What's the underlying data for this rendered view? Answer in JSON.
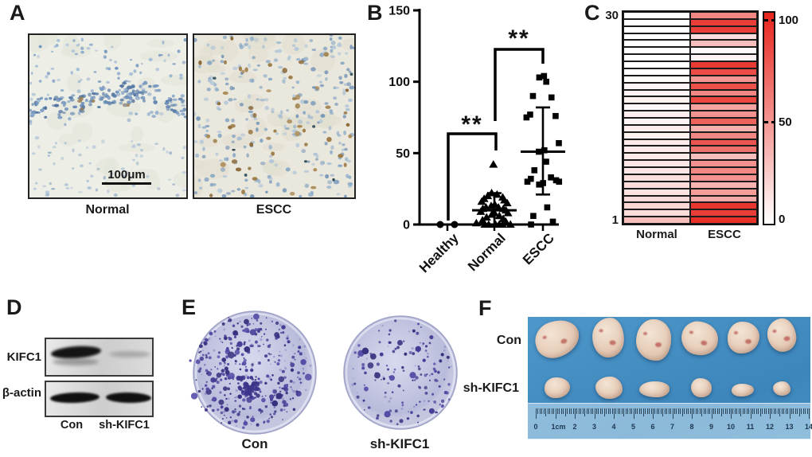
{
  "panels": {
    "A": {
      "letter": "A",
      "image_labels": [
        "Normal",
        "ESCC"
      ],
      "scale_bar_label": "100μm"
    },
    "B": {
      "letter": "B"
    },
    "C": {
      "letter": "C",
      "top_row_label": "30",
      "bottom_row_label": "1",
      "column_labels": [
        "Normal",
        "ESCC"
      ],
      "colorbar_labels": [
        "100",
        "50",
        "0"
      ]
    },
    "D": {
      "letter": "D",
      "band_labels": [
        "KIFC1",
        "β-actin"
      ],
      "lane_labels": [
        "Con",
        "sh-KIFC1"
      ]
    },
    "E": {
      "letter": "E",
      "dish_labels": [
        "Con",
        "sh-KIFC1"
      ]
    },
    "F": {
      "letter": "F",
      "row_labels": [
        "Con",
        "sh-KIFC1"
      ],
      "ruler_labels": [
        "0",
        "1cm",
        "2",
        "3",
        "4",
        "5",
        "6",
        "7",
        "8",
        "9",
        "10",
        "11",
        "12",
        "13",
        "14"
      ]
    }
  },
  "chart_data": [
    {
      "type": "scatter",
      "title": "",
      "categories": [
        "Healthy",
        "Normal",
        "ESCC"
      ],
      "ylim": [
        0,
        150
      ],
      "yticks": [
        0,
        50,
        100,
        150
      ],
      "series": [
        {
          "name": "Healthy",
          "marker": "circle",
          "values": [
            0,
            0
          ]
        },
        {
          "name": "Normal",
          "marker": "triangle",
          "values": [
            42,
            22,
            21,
            20,
            19,
            18,
            17,
            16,
            15,
            14,
            13,
            12,
            12,
            11,
            11,
            10,
            9,
            8,
            8,
            7,
            6,
            5,
            4,
            3,
            2,
            1,
            0,
            0,
            0,
            0,
            0,
            0
          ],
          "mean": 10,
          "sd_low": 0,
          "sd_high": 22
        },
        {
          "name": "ESCC",
          "marker": "square",
          "values": [
            104,
            103,
            100,
            90,
            89,
            77,
            76,
            75,
            57,
            52,
            51,
            44,
            38,
            33,
            32,
            31,
            30,
            30,
            29,
            28,
            12,
            6,
            2,
            0
          ],
          "mean": 51,
          "sd_low": 21,
          "sd_high": 82
        }
      ],
      "significance": [
        {
          "between": [
            "Healthy",
            "Normal"
          ],
          "label": "**"
        },
        {
          "between": [
            "Normal",
            "ESCC"
          ],
          "label": "**"
        }
      ],
      "legend": "none",
      "grid": false
    },
    {
      "type": "heatmap",
      "columns": [
        "Normal",
        "ESCC"
      ],
      "rows": 30,
      "row_order": "top_is_30_bottom_is_1",
      "colorbar": {
        "min": 0,
        "max": 100,
        "ticks": [
          0,
          50,
          100
        ]
      },
      "series": [
        {
          "name": "Normal",
          "values_top_to_bottom": [
            0,
            0,
            0,
            0,
            0,
            0,
            0,
            0,
            0,
            2,
            4,
            5,
            6,
            3,
            8,
            5,
            8,
            6,
            9,
            9,
            10,
            11,
            12,
            14,
            16,
            13,
            17,
            18,
            16,
            30
          ]
        },
        {
          "name": "ESCC",
          "values_top_to_bottom": [
            55,
            88,
            88,
            15,
            30,
            2,
            5,
            90,
            82,
            48,
            80,
            55,
            85,
            42,
            50,
            72,
            36,
            55,
            78,
            65,
            30,
            50,
            55,
            50,
            35,
            45,
            40,
            92,
            88,
            95
          ]
        }
      ]
    }
  ]
}
